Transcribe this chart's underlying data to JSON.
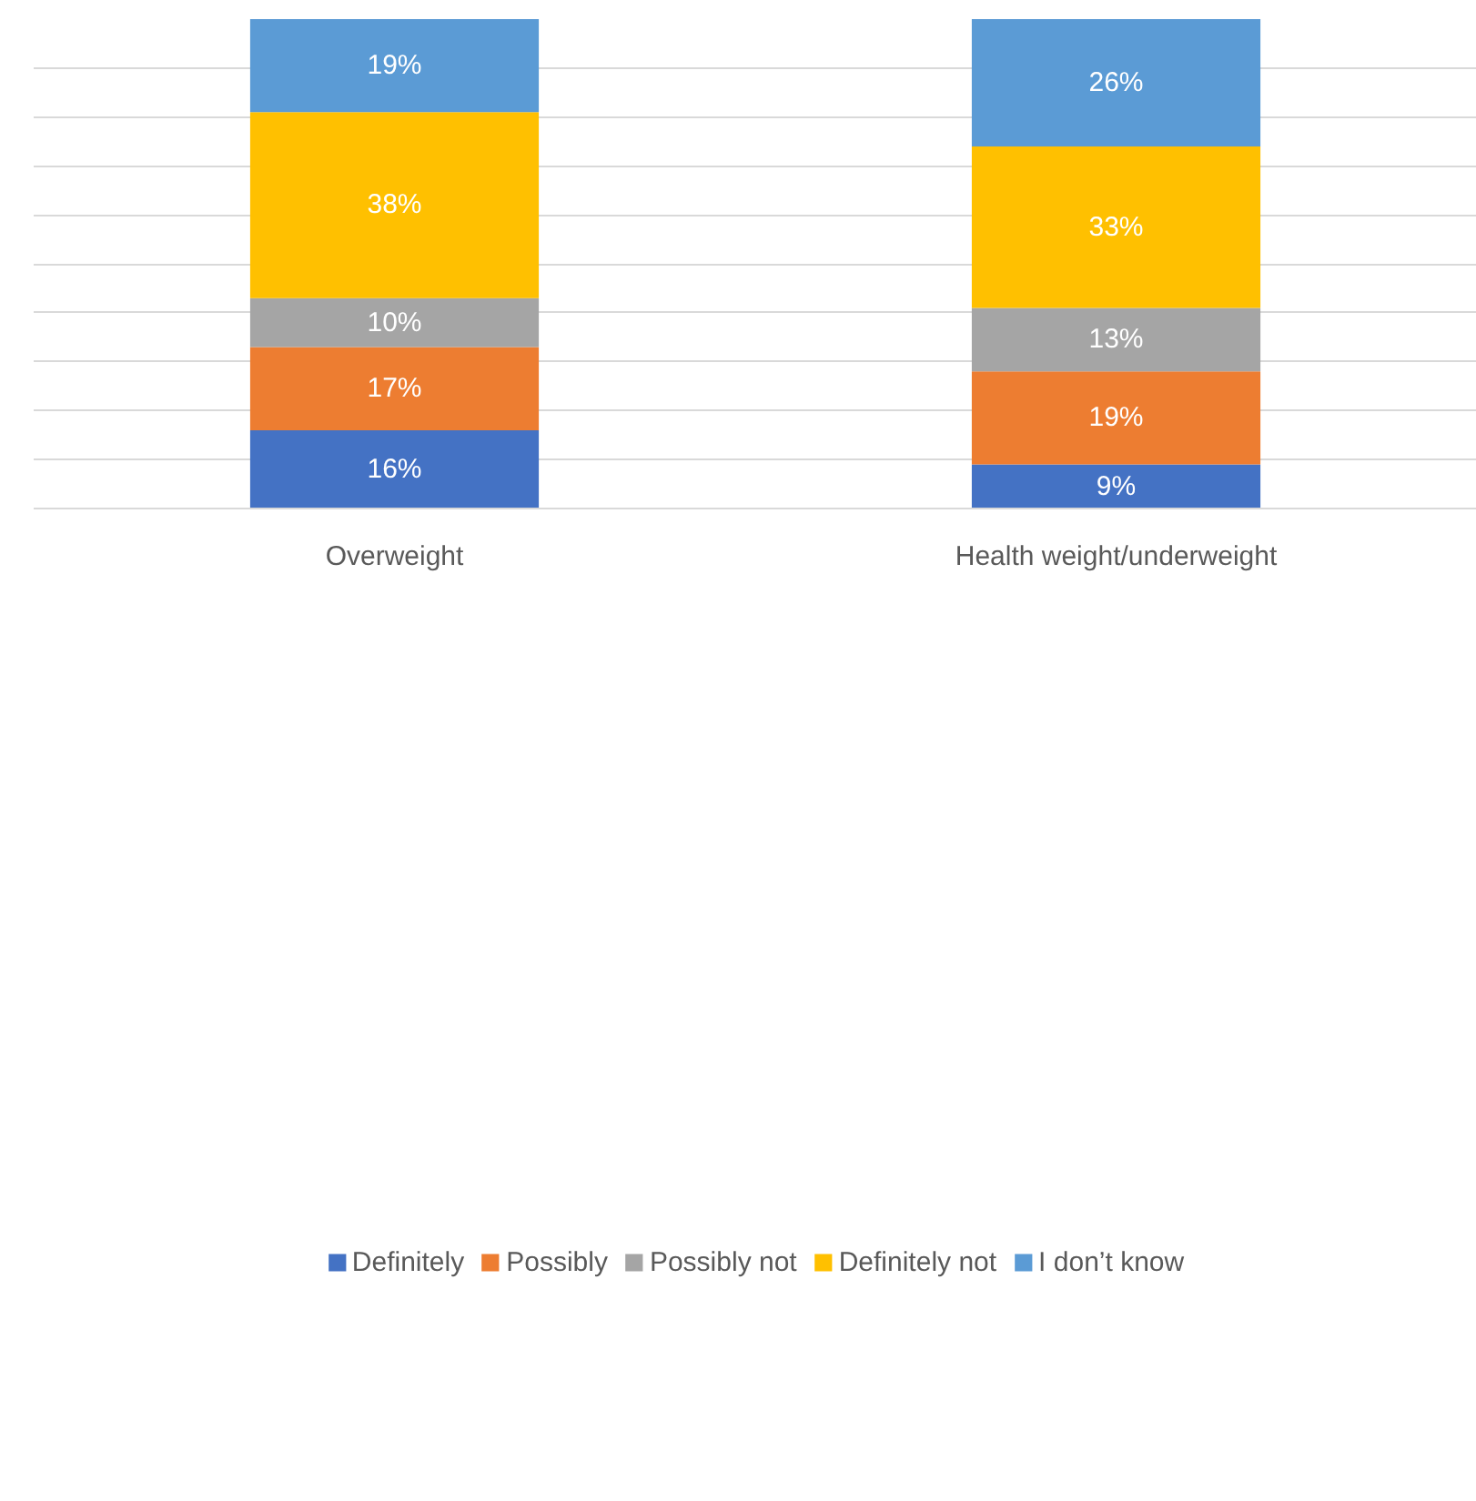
{
  "chart_data": {
    "type": "bar",
    "stacked": true,
    "categories": [
      "Overweight",
      "Health weight/underweight"
    ],
    "series": [
      {
        "name": "Definitely",
        "color": "#4472c4",
        "values": [
          16,
          9
        ],
        "value_labels": [
          "16%",
          "9%"
        ]
      },
      {
        "name": "Possibly",
        "color": "#ed7d31",
        "values": [
          17,
          19
        ],
        "value_labels": [
          "17%",
          "19%"
        ]
      },
      {
        "name": "Possibly not",
        "color": "#a5a5a5",
        "values": [
          10,
          13
        ],
        "value_labels": [
          "10%",
          "13%"
        ]
      },
      {
        "name": "Definitely not",
        "color": "#ffc000",
        "values": [
          38,
          33
        ],
        "value_labels": [
          "38%",
          "33%"
        ]
      },
      {
        "name": "I don’t know",
        "color": "#5b9bd5",
        "values": [
          19,
          26
        ],
        "value_labels": [
          "19%",
          "26%"
        ]
      }
    ],
    "ylim": [
      0,
      100
    ],
    "yticks": [
      0,
      10,
      20,
      30,
      40,
      50,
      60,
      70,
      80,
      90
    ],
    "grid": "y",
    "tick_labels": "x",
    "legend": "bottom"
  }
}
